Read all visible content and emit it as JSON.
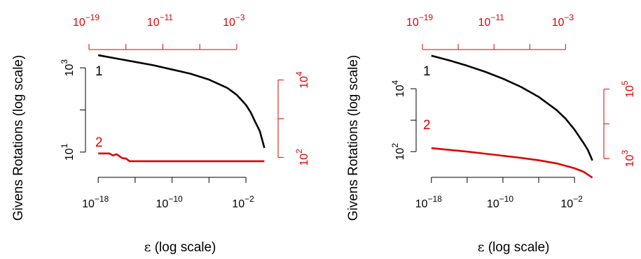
{
  "colors": {
    "black_series": "#000000",
    "red_series": "#e00000"
  },
  "chart_data": [
    {
      "type": "line",
      "xlabel_symbol": "ε",
      "xlabel_text": " (log scale)",
      "ylabel": "Givens Rotations (log scale)",
      "x_log_range": [
        -19,
        0.5
      ],
      "bottom_ticks": [
        {
          "base": "10",
          "exp": "−18",
          "pos": -18
        },
        {
          "base": "10",
          "exp": "−10",
          "pos": -10
        },
        {
          "base": "10",
          "exp": "−2",
          "pos": -2
        }
      ],
      "bottom_minor": [
        -14,
        -6
      ],
      "top_ticks": [
        {
          "base": "10",
          "exp": "−19",
          "pos": -19
        },
        {
          "base": "10",
          "exp": "−11",
          "pos": -11
        },
        {
          "base": "10",
          "exp": "−3",
          "pos": -3
        }
      ],
      "top_minor": [
        -15,
        -7
      ],
      "left_log_range": [
        0.6,
        3.4
      ],
      "left_ticks": [
        {
          "base": "10",
          "exp": "1",
          "pos": 1
        },
        {
          "base": "10",
          "exp": "3",
          "pos": 3
        }
      ],
      "left_minor": [
        2
      ],
      "right_log_range": [
        1.7,
        4.75
      ],
      "right_ticks": [
        {
          "base": "10",
          "exp": "2",
          "pos": 2
        },
        {
          "base": "10",
          "exp": "4",
          "pos": 4
        }
      ],
      "right_minor": [
        3
      ],
      "series": [
        {
          "name": "1",
          "axis": "left",
          "x": [
            -18,
            -16,
            -14,
            -12,
            -10,
            -8,
            -6,
            -4,
            -3,
            -2,
            -1.5,
            -1,
            -0.5,
            0
          ],
          "y": [
            3.3,
            3.22,
            3.14,
            3.06,
            2.96,
            2.86,
            2.72,
            2.52,
            2.36,
            2.12,
            1.95,
            1.72,
            1.5,
            1.1
          ]
        },
        {
          "name": "2",
          "axis": "right",
          "x": [
            -18,
            -16.8,
            -16.4,
            -16,
            -15.4,
            -15,
            -14.6,
            -14,
            0
          ],
          "y": [
            2.1,
            2.1,
            2.05,
            2.08,
            1.98,
            1.97,
            1.9,
            1.9,
            1.9
          ]
        }
      ]
    },
    {
      "type": "line",
      "xlabel_symbol": "ε",
      "xlabel_text": " (log scale)",
      "ylabel": "Givens Rotations (log scale)",
      "x_log_range": [
        -19,
        0.5
      ],
      "bottom_ticks": [
        {
          "base": "10",
          "exp": "−18",
          "pos": -18
        },
        {
          "base": "10",
          "exp": "−10",
          "pos": -10
        },
        {
          "base": "10",
          "exp": "−2",
          "pos": -2
        }
      ],
      "bottom_minor": [
        -14,
        -6
      ],
      "top_ticks": [
        {
          "base": "10",
          "exp": "−19",
          "pos": -19
        },
        {
          "base": "10",
          "exp": "−11",
          "pos": -11
        },
        {
          "base": "10",
          "exp": "−3",
          "pos": -3
        }
      ],
      "top_minor": [
        -15,
        -7
      ],
      "left_log_range": [
        1.45,
        5.2
      ],
      "left_ticks": [
        {
          "base": "10",
          "exp": "2",
          "pos": 2
        },
        {
          "base": "10",
          "exp": "4",
          "pos": 4
        }
      ],
      "left_minor": [
        3
      ],
      "right_log_range": [
        2.7,
        6.1
      ],
      "right_ticks": [
        {
          "base": "10",
          "exp": "3",
          "pos": 3
        },
        {
          "base": "10",
          "exp": "5",
          "pos": 5
        }
      ],
      "right_minor": [
        4
      ],
      "series": [
        {
          "name": "1",
          "axis": "left",
          "x": [
            -18,
            -16,
            -14,
            -12,
            -10,
            -8,
            -6,
            -4,
            -3,
            -2,
            -1,
            -0.5,
            0
          ],
          "y": [
            5.05,
            4.9,
            4.73,
            4.54,
            4.32,
            4.06,
            3.74,
            3.32,
            3.05,
            2.7,
            2.28,
            2.05,
            1.72
          ]
        },
        {
          "name": "2",
          "axis": "right",
          "x": [
            -18,
            -16,
            -14,
            -12,
            -10,
            -8,
            -6,
            -4,
            -2,
            -1,
            0
          ],
          "y": [
            3.3,
            3.25,
            3.2,
            3.14,
            3.08,
            3.02,
            2.95,
            2.86,
            2.72,
            2.62,
            2.45
          ]
        }
      ]
    }
  ]
}
